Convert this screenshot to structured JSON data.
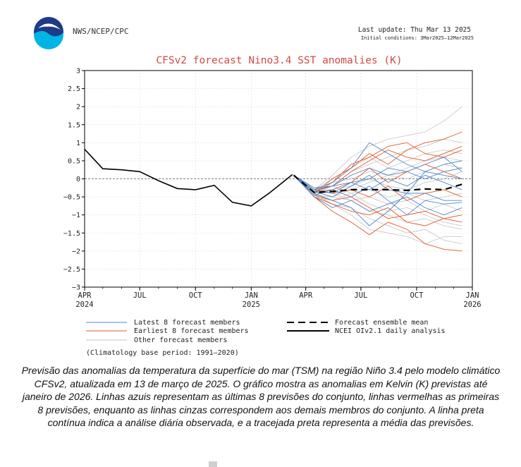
{
  "header": {
    "logo_text": "NOAA",
    "agency": "NWS/NCEP/CPC",
    "last_update": "Last update: Thu Mar 13 2025",
    "initial_conditions": "Initial conditions: 3Mar2025–12Mar2025"
  },
  "chart_data": {
    "type": "line",
    "title": "CFSv2 forecast Nino3.4 SST anomalies (K)",
    "xlabel": "",
    "ylabel": "",
    "xlim": [
      "2024-04-01",
      "2026-01-01"
    ],
    "ylim": [
      -3,
      3
    ],
    "yticks": [
      -3,
      -2.5,
      -2,
      -1.5,
      -1,
      -0.5,
      0,
      0.5,
      1,
      1.5,
      2,
      2.5,
      3
    ],
    "ytick_labels": [
      "−3",
      "−2.5",
      "−2",
      "−1.5",
      "−1",
      "−0.5",
      "0",
      "0.5",
      "1",
      "1.5",
      "2",
      "2.5",
      "3"
    ],
    "xticks": [
      {
        "date": "2024-04-01",
        "label": "APR",
        "year": "2024"
      },
      {
        "date": "2024-07-01",
        "label": "JUL",
        "year": ""
      },
      {
        "date": "2024-10-01",
        "label": "OCT",
        "year": ""
      },
      {
        "date": "2025-01-01",
        "label": "JAN",
        "year": "2025"
      },
      {
        "date": "2025-04-01",
        "label": "APR",
        "year": ""
      },
      {
        "date": "2025-07-01",
        "label": "JUL",
        "year": ""
      },
      {
        "date": "2025-10-01",
        "label": "OCT",
        "year": ""
      },
      {
        "date": "2026-01-01",
        "label": "JAN",
        "year": "2026"
      }
    ],
    "grid": true,
    "zero_line": true,
    "legend_placement": "bottom",
    "colors": {
      "latest": "#4f86c6",
      "earliest": "#e2592c",
      "other": "#c4c4c4",
      "mean": "#000000",
      "analysis": "#000000"
    },
    "forecast_dates": [
      "2025-03-12",
      "2025-04-15",
      "2025-05-15",
      "2025-06-15",
      "2025-07-15",
      "2025-08-15",
      "2025-09-15",
      "2025-10-15",
      "2025-11-15",
      "2025-12-15"
    ],
    "analysis": {
      "name": "NCEI OIv2.1 daily analysis",
      "x": [
        "2024-04-01",
        "2024-05-01",
        "2024-06-01",
        "2024-07-01",
        "2024-08-01",
        "2024-09-01",
        "2024-10-01",
        "2024-11-01",
        "2024-12-01",
        "2025-01-01",
        "2025-02-01",
        "2025-03-10"
      ],
      "y": [
        0.82,
        0.28,
        0.25,
        0.2,
        -0.05,
        -0.27,
        -0.3,
        -0.18,
        -0.65,
        -0.75,
        -0.38,
        0.12
      ]
    },
    "ensemble_mean": {
      "name": "Forecast ensemble mean",
      "y": [
        0.1,
        -0.38,
        -0.35,
        -0.3,
        -0.3,
        -0.3,
        -0.32,
        -0.28,
        -0.3,
        -0.15
      ]
    },
    "latest_members": {
      "name": "Latest 8 forecast members",
      "series": [
        [
          0.1,
          -0.3,
          -0.1,
          0.3,
          1.0,
          0.7,
          0.4,
          0.2,
          0.4,
          0.5
        ],
        [
          0.1,
          -0.35,
          -0.5,
          -0.2,
          0.1,
          -0.3,
          -0.4,
          0.2,
          0.1,
          0.0
        ],
        [
          0.1,
          -0.4,
          -0.6,
          -0.8,
          -1.3,
          -0.9,
          -0.4,
          -0.4,
          -0.6,
          -0.6
        ],
        [
          0.1,
          -0.25,
          -0.2,
          -0.1,
          0.0,
          0.3,
          0.2,
          0.4,
          0.6,
          0.2
        ],
        [
          0.1,
          -0.45,
          -0.3,
          -0.5,
          -0.2,
          -0.6,
          -1.0,
          -0.6,
          -0.7,
          -0.65
        ],
        [
          0.1,
          -0.3,
          -0.4,
          -0.1,
          -0.3,
          0.0,
          -0.2,
          0.1,
          -0.1,
          -0.3
        ],
        [
          0.1,
          -0.35,
          -0.2,
          0.1,
          0.3,
          0.1,
          0.2,
          0.0,
          0.2,
          0.3
        ],
        [
          0.1,
          -0.5,
          -0.8,
          -0.6,
          -0.9,
          -0.7,
          -0.5,
          -0.8,
          -1.0,
          -0.8
        ]
      ]
    },
    "earliest_members": {
      "name": "Earliest 8 forecast members",
      "series": [
        [
          0.1,
          -0.5,
          -0.9,
          -1.2,
          -1.55,
          -1.2,
          -1.4,
          -1.8,
          -1.95,
          -2.0
        ],
        [
          0.1,
          -0.4,
          0.0,
          0.3,
          0.7,
          0.4,
          0.8,
          1.0,
          1.1,
          1.3
        ],
        [
          0.1,
          -0.3,
          -0.2,
          0.2,
          0.5,
          0.8,
          0.6,
          0.5,
          0.7,
          0.9
        ],
        [
          0.1,
          -0.45,
          -0.6,
          -0.5,
          -0.8,
          -1.1,
          -1.0,
          -0.9,
          -1.1,
          -1.2
        ],
        [
          0.1,
          -0.35,
          -0.3,
          -0.1,
          0.3,
          -0.1,
          0.2,
          0.4,
          0.2,
          0.0
        ],
        [
          0.1,
          -0.5,
          -0.7,
          -0.9,
          -1.0,
          -0.8,
          -1.2,
          -1.3,
          -1.1,
          -1.0
        ],
        [
          0.1,
          -0.4,
          -0.1,
          0.4,
          0.6,
          0.9,
          1.0,
          0.7,
          0.6,
          0.8
        ],
        [
          0.1,
          -0.3,
          -0.4,
          -0.3,
          -0.5,
          -0.2,
          -0.6,
          -0.4,
          -0.3,
          -0.5
        ]
      ]
    },
    "other_members": {
      "name": "Other forecast members",
      "series": [
        [
          0.1,
          -0.3,
          0.1,
          0.6,
          0.9,
          1.1,
          1.2,
          1.3,
          1.6,
          2.0
        ],
        [
          0.1,
          -0.4,
          -0.7,
          -1.0,
          -1.4,
          -1.5,
          -1.6,
          -1.8,
          -1.6,
          -1.6
        ],
        [
          0.1,
          -0.35,
          -0.2,
          0.2,
          0.4,
          0.6,
          0.8,
          0.9,
          1.1,
          1.0
        ],
        [
          0.1,
          -0.45,
          -0.5,
          -0.6,
          -0.9,
          -1.0,
          -1.2,
          -1.1,
          -1.3,
          -1.4
        ],
        [
          0.1,
          -0.3,
          -0.1,
          0.0,
          0.2,
          0.1,
          0.3,
          0.5,
          0.6,
          0.5
        ],
        [
          0.1,
          -0.5,
          -0.6,
          -0.4,
          -0.7,
          -0.9,
          -0.8,
          -1.0,
          -1.2,
          -1.3
        ],
        [
          0.1,
          -0.4,
          -0.3,
          -0.2,
          0.0,
          -0.2,
          -0.3,
          -0.1,
          0.0,
          0.2
        ],
        [
          0.1,
          -0.35,
          -0.4,
          -0.6,
          -0.5,
          -0.7,
          -0.6,
          -0.9,
          -0.7,
          -0.9
        ],
        [
          0.1,
          -0.3,
          0.0,
          0.3,
          0.6,
          0.3,
          0.5,
          0.7,
          0.8,
          0.7
        ],
        [
          0.1,
          -0.45,
          -0.7,
          -0.8,
          -1.1,
          -1.3,
          -1.5,
          -1.4,
          -1.7,
          -1.8
        ],
        [
          0.1,
          -0.4,
          -0.2,
          -0.4,
          -0.3,
          -0.5,
          -0.4,
          -0.6,
          -0.5,
          -0.4
        ],
        [
          0.1,
          -0.35,
          -0.5,
          -0.3,
          -0.1,
          0.1,
          0.0,
          0.2,
          0.4,
          0.3
        ]
      ]
    },
    "climatology_note": "(Climatology base period: 1991–2020)"
  },
  "caption": "Previsão das anomalias da temperatura da superfície do mar (TSM) na região Niño 3.4 pelo modelo climático CFSv2, atualizada em 13 de março de 2025. O gráfico mostra as anomalias em Kelvin (K) previstas até janeiro de 2026. Linhas azuis representam as últimas 8 previsões do conjunto, linhas vermelhas as primeiras 8 previsões, enquanto as linhas cinzas correspondem aos demais membros do conjunto. A linha preta contínua indica a análise diária observada, e a tracejada preta representa a média das previsões."
}
